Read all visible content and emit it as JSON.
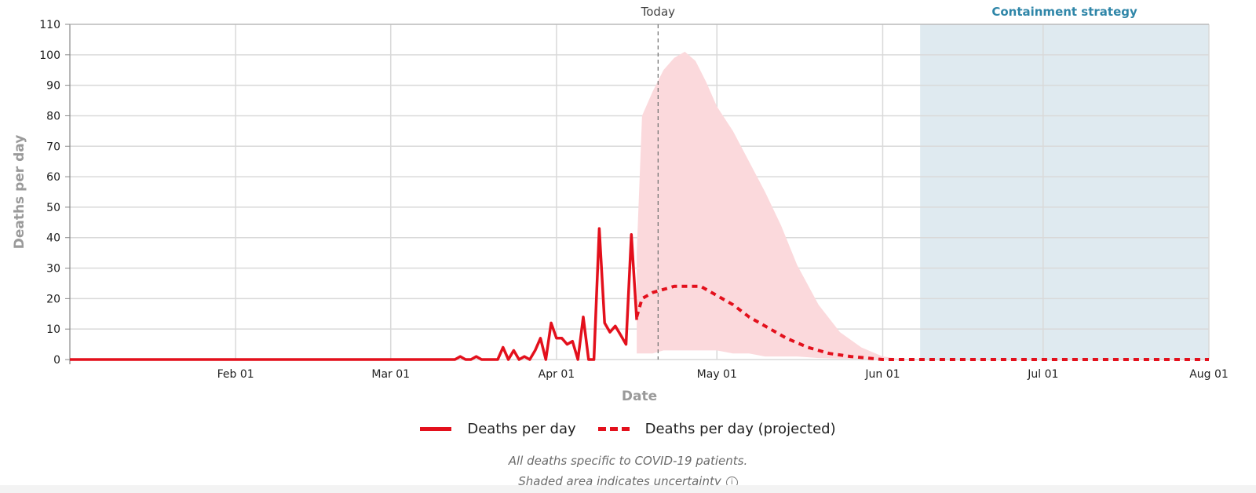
{
  "chart_data": {
    "type": "line",
    "xlabel": "Date",
    "ylabel": "Deaths per day",
    "ylim": [
      0,
      110
    ],
    "yticks": [
      0,
      10,
      20,
      30,
      40,
      50,
      60,
      70,
      80,
      90,
      100,
      110
    ],
    "xlim": [
      "2020-01-01",
      "2020-08-01"
    ],
    "xticks": [
      {
        "date": "2020-02-01",
        "label": "Feb 01"
      },
      {
        "date": "2020-03-01",
        "label": "Mar 01"
      },
      {
        "date": "2020-04-01",
        "label": "Apr 01"
      },
      {
        "date": "2020-05-01",
        "label": "May 01"
      },
      {
        "date": "2020-06-01",
        "label": "Jun 01"
      },
      {
        "date": "2020-07-01",
        "label": "Jul 01"
      },
      {
        "date": "2020-08-01",
        "label": "Aug 01"
      }
    ],
    "grid": true,
    "today": {
      "date": "2020-04-20",
      "label": "Today"
    },
    "containment": {
      "start": "2020-06-08",
      "end": "2020-08-01",
      "label": "Containment strategy",
      "color": "#dfeaf0"
    },
    "series": [
      {
        "name": "Deaths per day",
        "style": "solid",
        "color": "#e3101c",
        "points": [
          [
            "2020-01-01",
            0
          ],
          [
            "2020-03-13",
            0
          ],
          [
            "2020-03-14",
            1
          ],
          [
            "2020-03-15",
            0
          ],
          [
            "2020-03-16",
            0
          ],
          [
            "2020-03-17",
            1
          ],
          [
            "2020-03-18",
            0
          ],
          [
            "2020-03-19",
            0
          ],
          [
            "2020-03-20",
            0
          ],
          [
            "2020-03-21",
            0
          ],
          [
            "2020-03-22",
            4
          ],
          [
            "2020-03-23",
            0
          ],
          [
            "2020-03-24",
            3
          ],
          [
            "2020-03-25",
            0
          ],
          [
            "2020-03-26",
            1
          ],
          [
            "2020-03-27",
            0
          ],
          [
            "2020-03-28",
            3
          ],
          [
            "2020-03-29",
            7
          ],
          [
            "2020-03-30",
            0
          ],
          [
            "2020-03-31",
            12
          ],
          [
            "2020-04-01",
            7
          ],
          [
            "2020-04-02",
            7
          ],
          [
            "2020-04-03",
            5
          ],
          [
            "2020-04-04",
            6
          ],
          [
            "2020-04-05",
            0
          ],
          [
            "2020-04-06",
            14
          ],
          [
            "2020-04-07",
            0
          ],
          [
            "2020-04-08",
            0
          ],
          [
            "2020-04-09",
            43
          ],
          [
            "2020-04-10",
            12
          ],
          [
            "2020-04-11",
            9
          ],
          [
            "2020-04-12",
            11
          ],
          [
            "2020-04-13",
            8
          ],
          [
            "2020-04-14",
            5
          ],
          [
            "2020-04-15",
            41
          ],
          [
            "2020-04-16",
            13
          ]
        ]
      },
      {
        "name": "Deaths per day (projected)",
        "style": "dashed",
        "color": "#e3101c",
        "points": [
          [
            "2020-04-16",
            14
          ],
          [
            "2020-04-17",
            20
          ],
          [
            "2020-04-19",
            22
          ],
          [
            "2020-04-21",
            23
          ],
          [
            "2020-04-23",
            24
          ],
          [
            "2020-04-26",
            24
          ],
          [
            "2020-04-28",
            24
          ],
          [
            "2020-05-01",
            21
          ],
          [
            "2020-05-04",
            18
          ],
          [
            "2020-05-07",
            14
          ],
          [
            "2020-05-10",
            11
          ],
          [
            "2020-05-14",
            7
          ],
          [
            "2020-05-18",
            4
          ],
          [
            "2020-05-22",
            2
          ],
          [
            "2020-05-26",
            1
          ],
          [
            "2020-06-01",
            0
          ],
          [
            "2020-08-01",
            0
          ]
        ]
      }
    ],
    "uncertainty": {
      "color": "#fbd9dc",
      "points": [
        [
          "2020-04-16",
          2,
          35
        ],
        [
          "2020-04-17",
          2,
          80
        ],
        [
          "2020-04-19",
          2,
          88
        ],
        [
          "2020-04-21",
          3,
          95
        ],
        [
          "2020-04-23",
          3,
          99
        ],
        [
          "2020-04-25",
          3,
          101
        ],
        [
          "2020-04-27",
          3,
          98
        ],
        [
          "2020-04-29",
          3,
          91
        ],
        [
          "2020-05-01",
          3,
          83
        ],
        [
          "2020-05-04",
          2,
          75
        ],
        [
          "2020-05-07",
          2,
          65
        ],
        [
          "2020-05-10",
          1,
          55
        ],
        [
          "2020-05-13",
          1,
          44
        ],
        [
          "2020-05-16",
          1,
          31
        ],
        [
          "2020-05-20",
          0.5,
          18
        ],
        [
          "2020-05-24",
          0.3,
          9
        ],
        [
          "2020-05-28",
          0.2,
          4
        ],
        [
          "2020-06-01",
          0,
          1
        ],
        [
          "2020-06-05",
          0,
          0
        ]
      ]
    }
  },
  "legend": {
    "actual_label": "Deaths per day",
    "projected_label": "Deaths per day (projected)"
  },
  "footnotes": {
    "line1": "All deaths specific to COVID-19 patients.",
    "line2": "Shaded area indicates uncertainty",
    "info_icon": "info-icon"
  }
}
